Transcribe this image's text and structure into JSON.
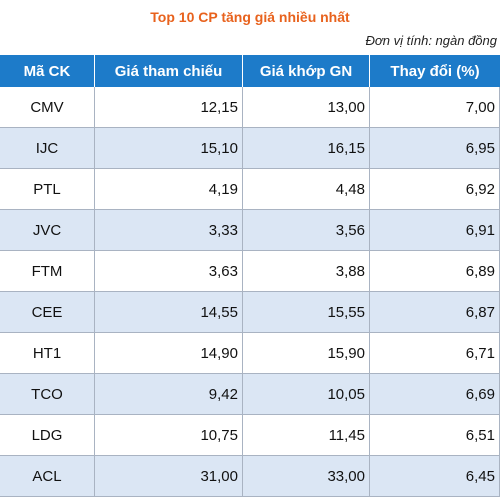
{
  "header": {
    "title": "Top 10 CP tăng giá nhiều nhất",
    "unit": "Đơn vị tính: ngàn đồng"
  },
  "table": {
    "columns": [
      "Mã CK",
      "Giá tham chiếu",
      "Giá khớp GN",
      "Thay đổi (%)"
    ],
    "rows": [
      {
        "code": "CMV",
        "ref": "12,15",
        "match": "13,00",
        "change": "7,00"
      },
      {
        "code": "IJC",
        "ref": "15,10",
        "match": "16,15",
        "change": "6,95"
      },
      {
        "code": "PTL",
        "ref": "4,19",
        "match": "4,48",
        "change": "6,92"
      },
      {
        "code": "JVC",
        "ref": "3,33",
        "match": "3,56",
        "change": "6,91"
      },
      {
        "code": "FTM",
        "ref": "3,63",
        "match": "3,88",
        "change": "6,89"
      },
      {
        "code": "CEE",
        "ref": "14,55",
        "match": "15,55",
        "change": "6,87"
      },
      {
        "code": "HT1",
        "ref": "14,90",
        "match": "15,90",
        "change": "6,71"
      },
      {
        "code": "TCO",
        "ref": "9,42",
        "match": "10,05",
        "change": "6,69"
      },
      {
        "code": "LDG",
        "ref": "10,75",
        "match": "11,45",
        "change": "6,51"
      },
      {
        "code": "ACL",
        "ref": "31,00",
        "match": "33,00",
        "change": "6,45"
      }
    ]
  },
  "colors": {
    "title": "#e8621d",
    "header_bg": "#1d7bc9",
    "row_alt": "#dbe6f4"
  }
}
